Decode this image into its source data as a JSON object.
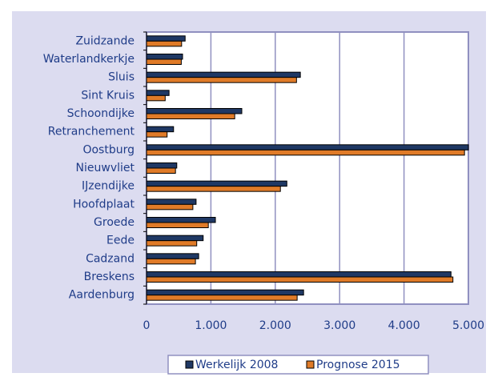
{
  "chart_data": {
    "type": "barh",
    "categories": [
      "Zuidzande",
      "Waterlandkerkje",
      "Sluis",
      "Sint Kruis",
      "Schoondijke",
      "Retranchement",
      "Oostburg",
      "Nieuwvliet",
      "IJzendijke",
      "Hoofdplaat",
      "Groede",
      "Eede",
      "Cadzand",
      "Breskens",
      "Aardenburg"
    ],
    "series": [
      {
        "name": "Werkelijk 2008",
        "color": "#1f3864",
        "values": [
          600,
          560,
          2390,
          350,
          1480,
          420,
          5000,
          470,
          2180,
          770,
          1070,
          880,
          810,
          4730,
          2440
        ]
      },
      {
        "name": "Prognose 2015",
        "color": "#e07b28",
        "values": [
          545,
          540,
          2330,
          290,
          1370,
          320,
          4940,
          450,
          2080,
          720,
          960,
          780,
          760,
          4760,
          2340
        ]
      }
    ],
    "xlim": [
      0,
      5000
    ],
    "xticks": [
      0,
      {
        "value": 1000,
        "label": "1.000"
      },
      {
        "value": 2000,
        "label": "2.000"
      },
      {
        "value": 3000,
        "label": "3.000"
      },
      {
        "value": 4000,
        "label": "4.000"
      },
      {
        "value": 5000,
        "label": "5.000"
      }
    ],
    "grid": true,
    "legend": "bottom"
  }
}
